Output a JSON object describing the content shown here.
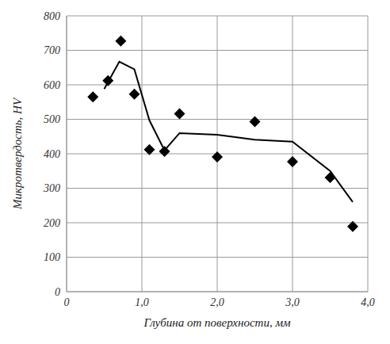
{
  "chart_data": {
    "type": "scatter",
    "x_label": "Глубина от поверхности, мм",
    "y_label": "Микротвердость, HV",
    "xlim": [
      0,
      4
    ],
    "ylim": [
      0,
      800
    ],
    "xticks": [
      0,
      {
        "value": 1,
        "label": "1,0"
      },
      {
        "value": 2,
        "label": "2,0"
      },
      {
        "value": 3,
        "label": "3,0"
      },
      {
        "value": 4,
        "label": "4,0"
      }
    ],
    "yticks": [
      0,
      100,
      200,
      300,
      400,
      500,
      600,
      700,
      800
    ],
    "grid": true,
    "series": [
      {
        "type": "scatter",
        "marker": "diamond",
        "color": "#000000",
        "x": [
          0.35,
          0.55,
          0.72,
          0.9,
          1.1,
          1.3,
          1.5,
          2.0,
          2.5,
          3.0,
          3.5,
          3.8
        ],
        "values": [
          565,
          612,
          727,
          573,
          412,
          407,
          516,
          391,
          493,
          377,
          331,
          189
        ]
      },
      {
        "type": "line",
        "line_style": "solid",
        "color": "#000000",
        "x": [
          0.5,
          0.7,
          0.9,
          1.1,
          1.3,
          1.5,
          2.0,
          2.5,
          3.0,
          3.5,
          3.8
        ],
        "values": [
          588,
          667,
          645,
          497,
          410,
          460,
          455,
          441,
          435,
          350,
          260
        ]
      }
    ]
  }
}
